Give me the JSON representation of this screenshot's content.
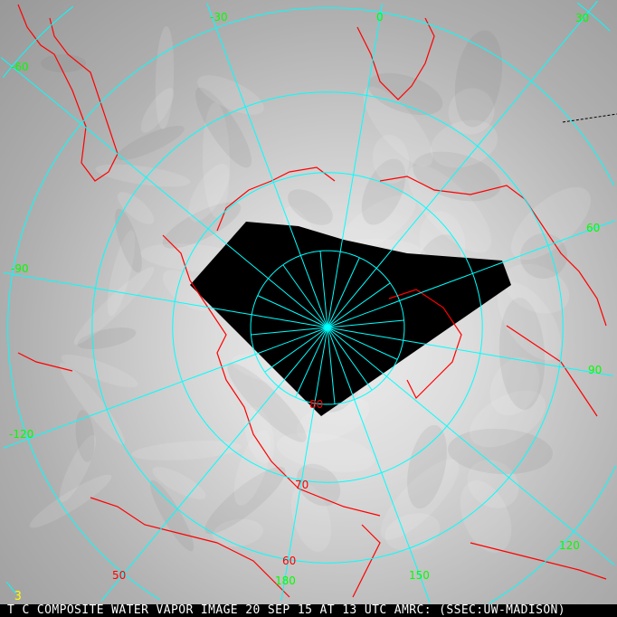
{
  "caption": "T C COMPOSITE WATER VAPOR IMAGE 20 SEP 15 AT 13 UTC AMRC: (SSEC:UW-MADISON)",
  "frame_marker": "3",
  "colors": {
    "grid": "#00ffff",
    "coastline": "#ff0000",
    "longitude_label": "#00ff00",
    "latitude_label": "#ff0000",
    "no_data": "#000000"
  },
  "projection": "polar stereographic, north pole",
  "longitude_labels": [
    "-30",
    "0",
    "30",
    "60",
    "90",
    "120",
    "150",
    "180",
    "-120",
    "-90",
    "-60"
  ],
  "latitude_labels": [
    "80",
    "70",
    "60",
    "50"
  ]
}
